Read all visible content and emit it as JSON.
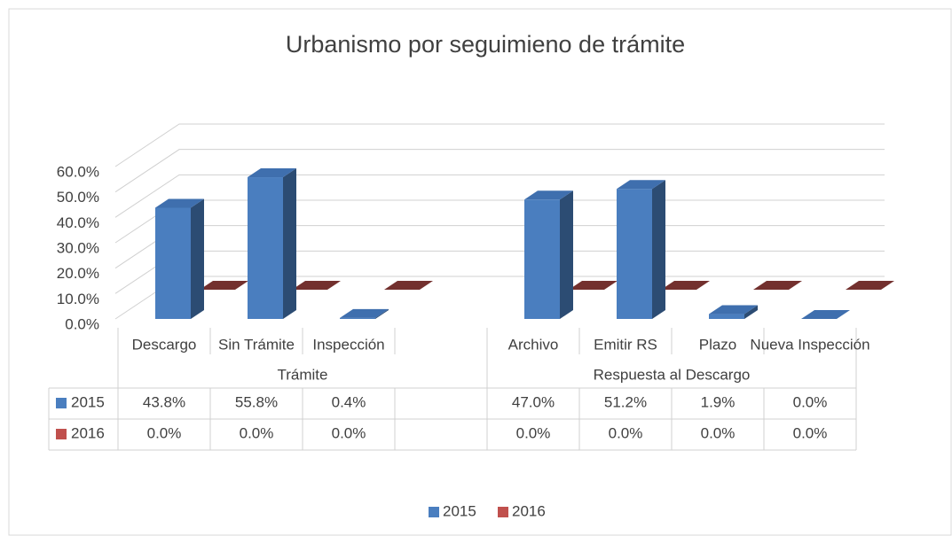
{
  "chart_data": {
    "type": "bar3d",
    "title": "Urbanismo por seguimieno de trámite",
    "categories": [
      "Descargo",
      "Sin Trámite",
      "Inspección",
      null,
      "Archivo",
      "Emitir RS",
      "Plazo",
      "Nueva Inspección"
    ],
    "groups": [
      {
        "label": "Trámite",
        "count": 4
      },
      {
        "label": "Respuesta al Descargo",
        "count": 4
      }
    ],
    "series": [
      {
        "name": "2015",
        "color": "#4a7ebf",
        "values": [
          43.8,
          55.8,
          0.4,
          null,
          47.0,
          51.2,
          1.9,
          0.0
        ],
        "value_labels": [
          "43.8%",
          "55.8%",
          "0.4%",
          null,
          "47.0%",
          "51.2%",
          "1.9%",
          "0.0%"
        ]
      },
      {
        "name": "2016",
        "color": "#c0504d",
        "values": [
          0.0,
          0.0,
          0.0,
          null,
          0.0,
          0.0,
          0.0,
          0.0
        ],
        "value_labels": [
          "0.0%",
          "0.0%",
          "0.0%",
          null,
          "0.0%",
          "0.0%",
          "0.0%",
          "0.0%"
        ]
      }
    ],
    "ylim": [
      0,
      60
    ],
    "yticks": [
      {
        "value": 0,
        "label": "0.0%"
      },
      {
        "value": 10,
        "label": "10.0%"
      },
      {
        "value": 20,
        "label": "20.0%"
      },
      {
        "value": 30,
        "label": "30.0%"
      },
      {
        "value": 40,
        "label": "40.0%"
      },
      {
        "value": 50,
        "label": "50.0%"
      },
      {
        "value": 60,
        "label": "60.0%"
      }
    ],
    "grid": true
  }
}
